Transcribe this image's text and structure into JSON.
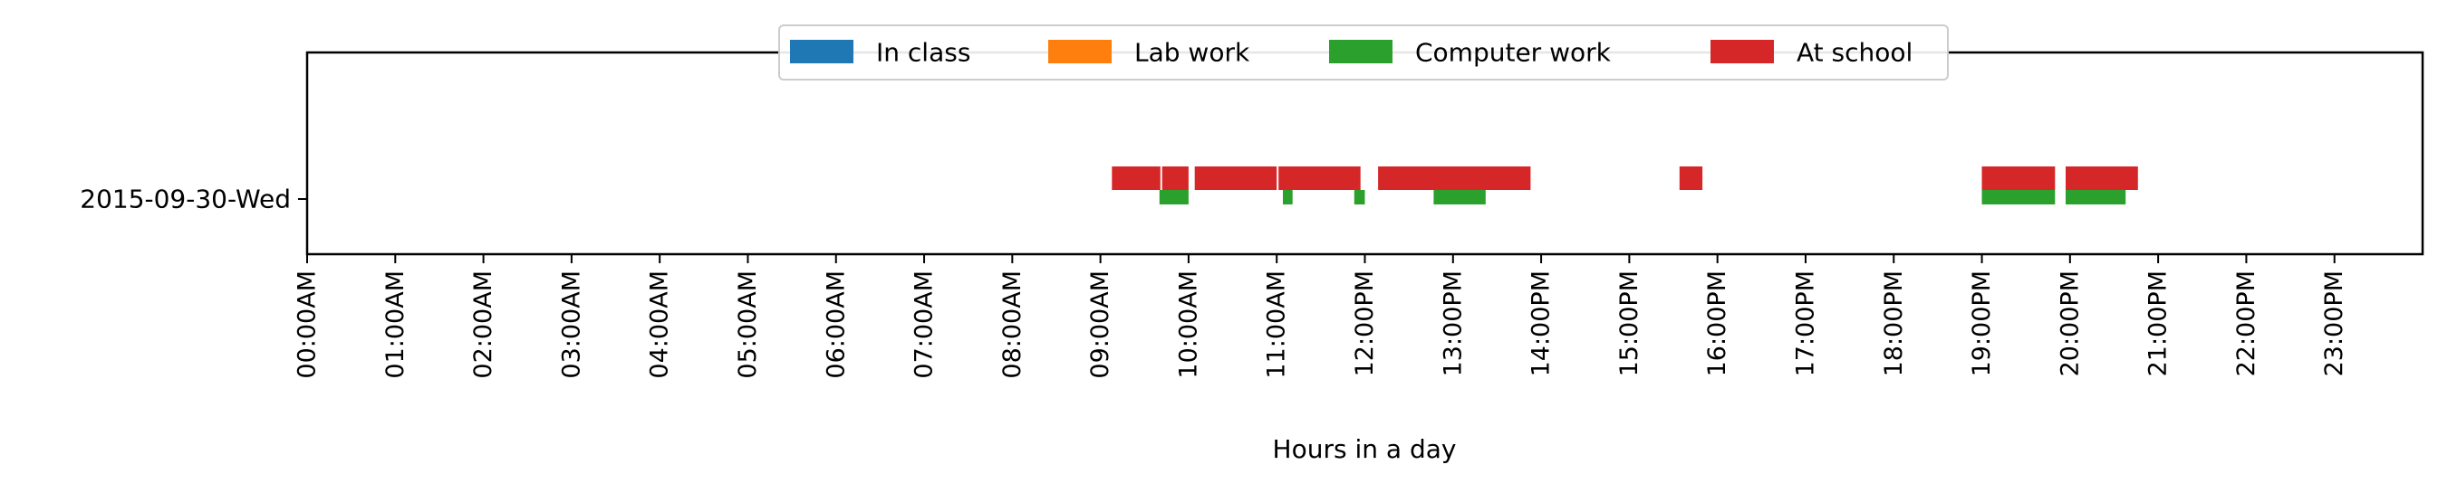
{
  "chart_data": {
    "type": "bar",
    "orientation": "horizontal-timeline",
    "title": "",
    "xlabel": "Hours in a day",
    "ylabel": "",
    "xlim": [
      0,
      24
    ],
    "x_ticks": [
      {
        "value": 0,
        "label": "00:00AM"
      },
      {
        "value": 1,
        "label": "01:00AM"
      },
      {
        "value": 2,
        "label": "02:00AM"
      },
      {
        "value": 3,
        "label": "03:00AM"
      },
      {
        "value": 4,
        "label": "04:00AM"
      },
      {
        "value": 5,
        "label": "05:00AM"
      },
      {
        "value": 6,
        "label": "06:00AM"
      },
      {
        "value": 7,
        "label": "07:00AM"
      },
      {
        "value": 8,
        "label": "08:00AM"
      },
      {
        "value": 9,
        "label": "09:00AM"
      },
      {
        "value": 10,
        "label": "10:00AM"
      },
      {
        "value": 11,
        "label": "11:00AM"
      },
      {
        "value": 12,
        "label": "12:00PM"
      },
      {
        "value": 13,
        "label": "13:00PM"
      },
      {
        "value": 14,
        "label": "14:00PM"
      },
      {
        "value": 15,
        "label": "15:00PM"
      },
      {
        "value": 16,
        "label": "16:00PM"
      },
      {
        "value": 17,
        "label": "17:00PM"
      },
      {
        "value": 18,
        "label": "18:00PM"
      },
      {
        "value": 19,
        "label": "19:00PM"
      },
      {
        "value": 20,
        "label": "20:00PM"
      },
      {
        "value": 21,
        "label": "21:00PM"
      },
      {
        "value": 22,
        "label": "22:00PM"
      },
      {
        "value": 23,
        "label": "23:00PM"
      }
    ],
    "y_categories": [
      "2015-09-30-Wed"
    ],
    "grid": false,
    "legend_position": "top-center",
    "series": [
      {
        "name": "In class",
        "color": "#1f77b4",
        "intervals": []
      },
      {
        "name": "Lab work",
        "color": "#ff7f0e",
        "intervals": []
      },
      {
        "name": "Computer work",
        "color": "#2ca02c",
        "intervals": [
          [
            9.67,
            10.0
          ],
          [
            11.07,
            11.18
          ],
          [
            11.88,
            12.0
          ],
          [
            12.78,
            13.37
          ],
          [
            19.0,
            19.83
          ],
          [
            19.95,
            20.63
          ]
        ]
      },
      {
        "name": "At school",
        "color": "#d62728",
        "intervals": [
          [
            9.13,
            9.68
          ],
          [
            9.7,
            10.0
          ],
          [
            10.07,
            11.0
          ],
          [
            11.02,
            11.95
          ],
          [
            12.15,
            13.88
          ],
          [
            15.57,
            15.83
          ],
          [
            19.0,
            19.83
          ],
          [
            19.95,
            20.77
          ]
        ]
      }
    ]
  }
}
